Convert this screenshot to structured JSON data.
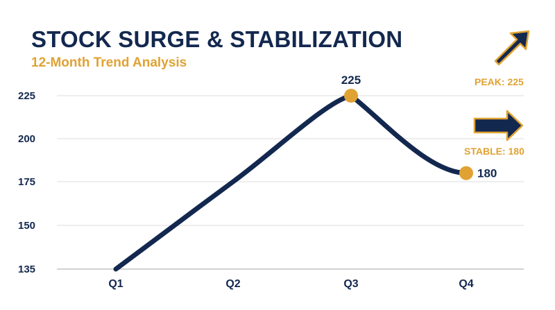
{
  "chart_data": {
    "type": "line",
    "title": "STOCK SURGE & STABILIZATION",
    "subtitle": "12-Month Trend Analysis",
    "categories": [
      "Q1",
      "Q2",
      "Q3",
      "Q4"
    ],
    "series": [
      {
        "values": [
          135,
          175,
          225,
          180
        ]
      }
    ],
    "y_ticks": [
      135,
      150,
      175,
      200,
      225
    ],
    "ylim": [
      135,
      225
    ],
    "grid": true,
    "highlighted_points": [
      {
        "category": "Q3",
        "value": 225,
        "label": "225"
      },
      {
        "category": "Q4",
        "value": 180,
        "label": "180"
      }
    ],
    "annotations": [
      {
        "label": "PEAK: 225",
        "icon": "arrow-up-right-icon"
      },
      {
        "label": "STABLE: 180",
        "icon": "arrow-right-icon"
      }
    ],
    "colors": {
      "line": "#13284f",
      "marker": "#e0a233",
      "grid": "#dedede",
      "accent": "#e0a233"
    }
  }
}
